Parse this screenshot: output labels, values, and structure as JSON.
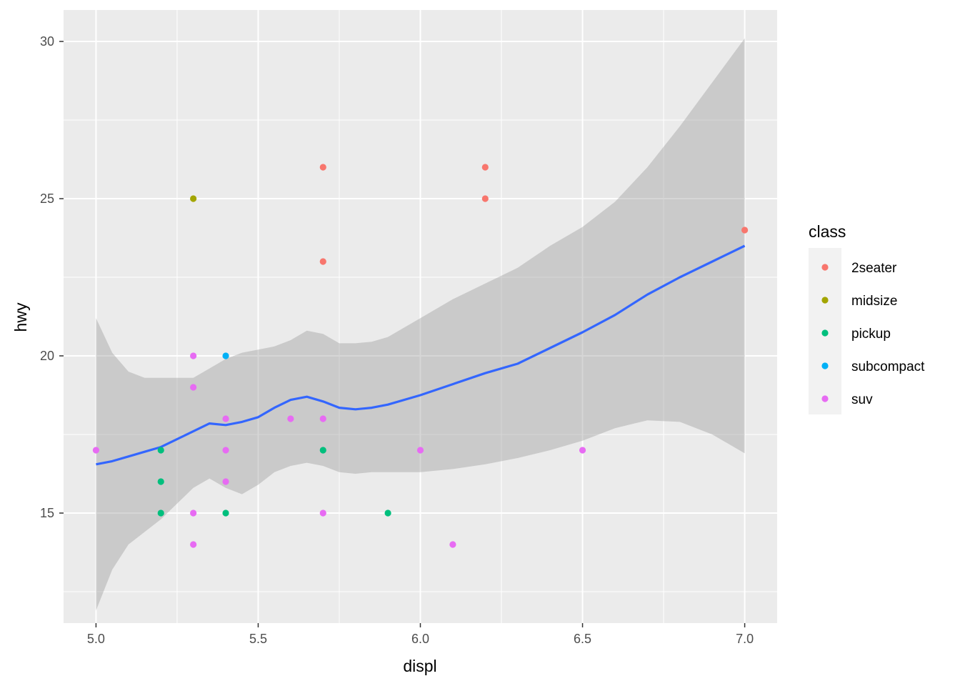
{
  "chart_data": {
    "type": "scatter",
    "xlabel": "displ",
    "ylabel": "hwy",
    "xlim": [
      4.9,
      7.1
    ],
    "ylim": [
      11.5,
      31.0
    ],
    "x_ticks": [
      5.0,
      5.5,
      6.0,
      6.5,
      7.0
    ],
    "x_tick_labels": [
      "5.0",
      "5.5",
      "6.0",
      "6.5",
      "7.0"
    ],
    "x_minor_ticks": [
      5.25,
      5.75,
      6.25,
      6.75
    ],
    "y_ticks": [
      15,
      20,
      25,
      30
    ],
    "y_tick_labels": [
      "15",
      "20",
      "25",
      "30"
    ],
    "y_minor_ticks": [
      12.5,
      17.5,
      22.5,
      27.5
    ],
    "grid": true,
    "legend": {
      "title": "class",
      "position": "right",
      "entries": [
        {
          "name": "2seater",
          "color": "#F8766D"
        },
        {
          "name": "midsize",
          "color": "#A3A500"
        },
        {
          "name": "pickup",
          "color": "#00BF7D"
        },
        {
          "name": "subcompact",
          "color": "#00B0F6"
        },
        {
          "name": "suv",
          "color": "#E76BF3"
        }
      ]
    },
    "series": [
      {
        "name": "2seater",
        "color": "#F8766D",
        "points": [
          [
            5.7,
            26
          ],
          [
            5.7,
            23
          ],
          [
            6.2,
            26
          ],
          [
            6.2,
            25
          ],
          [
            7.0,
            24
          ]
        ]
      },
      {
        "name": "midsize",
        "color": "#A3A500",
        "points": [
          [
            5.3,
            25
          ]
        ]
      },
      {
        "name": "pickup",
        "color": "#00BF7D",
        "points": [
          [
            5.2,
            17
          ],
          [
            5.2,
            16
          ],
          [
            5.2,
            15
          ],
          [
            5.4,
            15
          ],
          [
            5.7,
            17
          ],
          [
            5.9,
            15
          ]
        ]
      },
      {
        "name": "subcompact",
        "color": "#00B0F6",
        "points": [
          [
            5.4,
            20
          ]
        ]
      },
      {
        "name": "suv",
        "color": "#E76BF3",
        "points": [
          [
            5.0,
            17
          ],
          [
            5.3,
            20
          ],
          [
            5.3,
            19
          ],
          [
            5.3,
            15
          ],
          [
            5.3,
            14
          ],
          [
            5.4,
            18
          ],
          [
            5.4,
            17
          ],
          [
            5.4,
            16
          ],
          [
            5.6,
            18
          ],
          [
            5.7,
            18
          ],
          [
            5.7,
            15
          ],
          [
            6.0,
            17
          ],
          [
            6.1,
            14
          ],
          [
            6.5,
            17
          ]
        ]
      }
    ],
    "smooth": {
      "method": "loess",
      "color": "#3366FF",
      "band_color": "#999999",
      "points": [
        [
          5.0,
          16.55,
          11.9,
          21.2
        ],
        [
          5.05,
          16.65,
          13.2,
          20.1
        ],
        [
          5.1,
          16.8,
          14.0,
          19.5
        ],
        [
          5.15,
          16.95,
          14.4,
          19.3
        ],
        [
          5.2,
          17.1,
          14.8,
          19.3
        ],
        [
          5.25,
          17.35,
          15.3,
          19.3
        ],
        [
          5.3,
          17.6,
          15.8,
          19.3
        ],
        [
          5.35,
          17.85,
          16.1,
          19.6
        ],
        [
          5.4,
          17.8,
          15.8,
          19.9
        ],
        [
          5.45,
          17.9,
          15.6,
          20.1
        ],
        [
          5.5,
          18.05,
          15.9,
          20.2
        ],
        [
          5.55,
          18.35,
          16.3,
          20.3
        ],
        [
          5.6,
          18.6,
          16.5,
          20.5
        ],
        [
          5.65,
          18.7,
          16.6,
          20.8
        ],
        [
          5.7,
          18.55,
          16.5,
          20.7
        ],
        [
          5.75,
          18.35,
          16.3,
          20.4
        ],
        [
          5.8,
          18.3,
          16.25,
          20.4
        ],
        [
          5.85,
          18.35,
          16.3,
          20.45
        ],
        [
          5.9,
          18.45,
          16.3,
          20.6
        ],
        [
          6.0,
          18.75,
          16.3,
          21.2
        ],
        [
          6.1,
          19.1,
          16.4,
          21.8
        ],
        [
          6.2,
          19.45,
          16.55,
          22.3
        ],
        [
          6.3,
          19.75,
          16.75,
          22.8
        ],
        [
          6.4,
          20.25,
          17.0,
          23.5
        ],
        [
          6.5,
          20.75,
          17.3,
          24.1
        ],
        [
          6.6,
          21.3,
          17.7,
          24.9
        ],
        [
          6.7,
          21.95,
          17.95,
          26.0
        ],
        [
          6.8,
          22.5,
          17.9,
          27.3
        ],
        [
          6.9,
          23.0,
          17.5,
          28.7
        ],
        [
          7.0,
          23.5,
          16.9,
          30.1
        ]
      ]
    }
  }
}
